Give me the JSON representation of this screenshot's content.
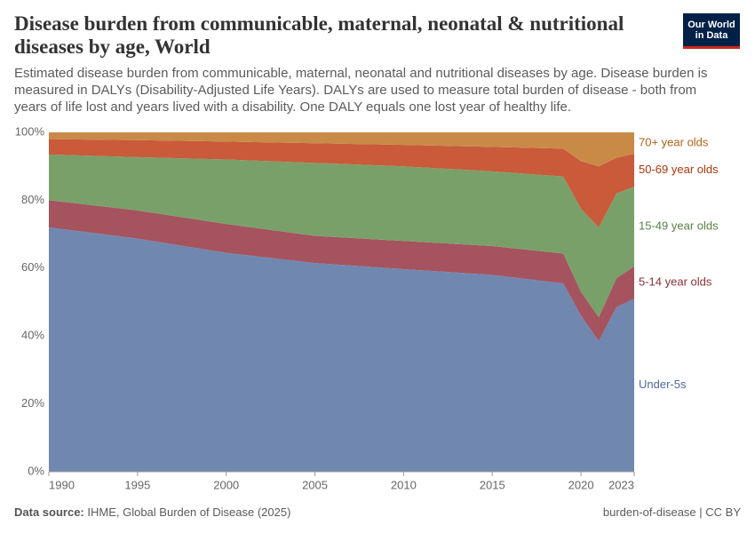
{
  "chart_data": {
    "type": "stacked-area",
    "title": "Disease burden from communicable, maternal, neonatal & nutritional diseases by age, World",
    "subtitle": "Estimated disease burden from communicable, maternal, neonatal and nutritional diseases by age. Disease burden is measured in DALYs (Disability-Adjusted Life Years). DALYs are used to measure total burden of disease - both from years of life lost and years lived with a disability. One DALY equals one lost year of healthy life.",
    "logo": [
      "Our World",
      "in Data"
    ],
    "source_label": "Data source:",
    "source": "IHME, Global Burden of Disease (2025)",
    "note": "burden-of-disease | CC BY",
    "x": [
      1990,
      1995,
      2000,
      2005,
      2010,
      2015,
      2019,
      2020,
      2021,
      2022,
      2023
    ],
    "xlim": [
      1990,
      2023
    ],
    "xticks": [
      1990,
      1995,
      2000,
      2005,
      2010,
      2015,
      2020,
      2023
    ],
    "ylim": [
      0,
      100
    ],
    "yticks": [
      {
        "value": 0,
        "label": "0%"
      },
      {
        "value": 20,
        "label": "20%"
      },
      {
        "value": 40,
        "label": "40%"
      },
      {
        "value": 60,
        "label": "60%"
      },
      {
        "value": 80,
        "label": "80%"
      },
      {
        "value": 100,
        "label": "100%"
      }
    ],
    "grid": true,
    "series": [
      {
        "name": "Under-5s",
        "color": "#7088b0",
        "label_color": "#4c6a9c",
        "values": [
          72,
          68.7,
          64.5,
          61.5,
          59.7,
          58,
          55.5,
          46,
          38.5,
          48.5,
          51
        ]
      },
      {
        "name": "5-14 year olds",
        "color": "#a4535f",
        "label_color": "#883039",
        "values": [
          8,
          8.3,
          8.5,
          8,
          8.3,
          8.5,
          8.8,
          7,
          7,
          8.5,
          9.5
        ]
      },
      {
        "name": "15-49 year olds",
        "color": "#7aa06a",
        "label_color": "#578145",
        "values": [
          13.5,
          15.7,
          19,
          21.5,
          22,
          22,
          22.7,
          24.5,
          26.5,
          25,
          23.5
        ]
      },
      {
        "name": "50-69 year olds",
        "color": "#c95a3a",
        "label_color": "#b13507",
        "values": [
          4.5,
          5,
          5.3,
          5.8,
          6.3,
          7.2,
          8.2,
          14,
          18,
          10.5,
          9.7
        ]
      },
      {
        "name": "70+ year olds",
        "color": "#c98a48",
        "label_color": "#b16214",
        "values": [
          2,
          2.3,
          2.7,
          3.2,
          3.7,
          4.3,
          4.8,
          8.5,
          10,
          7.5,
          6.3
        ]
      }
    ]
  }
}
